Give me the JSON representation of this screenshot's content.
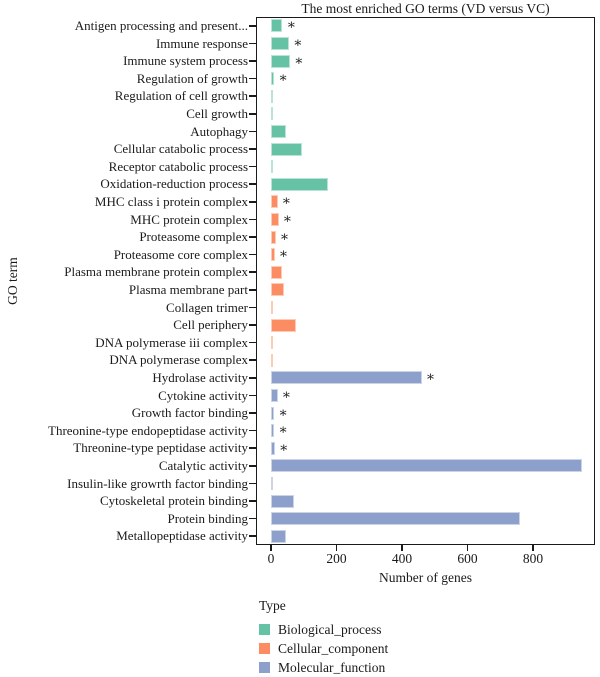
{
  "title": "The most enriched GO terms (VD versus VC)",
  "x_axis": {
    "label": "Number of genes",
    "tick_labels": [
      "0",
      "200",
      "400",
      "600",
      "800"
    ],
    "tick_values": [
      0,
      200,
      400,
      600,
      800
    ]
  },
  "y_axis": {
    "label": "GO term"
  },
  "legend": {
    "title": "Type",
    "position": "bottom-left",
    "items": [
      {
        "label": "Biological_process",
        "color": "#66C2A5"
      },
      {
        "label": "Cellular_component",
        "color": "#FC8D62"
      },
      {
        "label": "Molecular_function",
        "color": "#8DA0CB"
      }
    ]
  },
  "colors": {
    "Biological_process": "#66C2A5",
    "Cellular_component": "#FC8D62",
    "Molecular_function": "#8DA0CB",
    "axis": "#1a1a1a"
  },
  "significance_marker": "∗",
  "chart_data": {
    "type": "bar",
    "orientation": "horizontal",
    "title": "The most enriched GO terms (VD versus VC)",
    "xlabel": "Number of genes",
    "ylabel": "GO term",
    "xlim": [
      0,
      989
    ],
    "grid": false,
    "legend_position": "bottom-left",
    "series_field": "Type",
    "bars": [
      {
        "term": "Antigen processing and present...",
        "value": 35,
        "type": "Biological_process",
        "significant": true
      },
      {
        "term": "Immune response",
        "value": 55,
        "type": "Biological_process",
        "significant": true
      },
      {
        "term": "Immune system process",
        "value": 58,
        "type": "Biological_process",
        "significant": true
      },
      {
        "term": "Regulation of growth",
        "value": 10,
        "type": "Biological_process",
        "significant": true
      },
      {
        "term": "Regulation of cell growth",
        "value": 7,
        "type": "Biological_process",
        "significant": false
      },
      {
        "term": "Cell growth",
        "value": 7,
        "type": "Biological_process",
        "significant": false
      },
      {
        "term": "Autophagy",
        "value": 45,
        "type": "Biological_process",
        "significant": false
      },
      {
        "term": "Cellular catabolic process",
        "value": 95,
        "type": "Biological_process",
        "significant": false
      },
      {
        "term": "Receptor catabolic process",
        "value": 5,
        "type": "Biological_process",
        "significant": false
      },
      {
        "term": "Oxidation-reduction process",
        "value": 175,
        "type": "Biological_process",
        "significant": false
      },
      {
        "term": "MHC class i protein complex",
        "value": 20,
        "type": "Cellular_component",
        "significant": true
      },
      {
        "term": "MHC protein complex",
        "value": 23,
        "type": "Cellular_component",
        "significant": true
      },
      {
        "term": "Proteasome complex",
        "value": 14,
        "type": "Cellular_component",
        "significant": true
      },
      {
        "term": "Proteasome core complex",
        "value": 11,
        "type": "Cellular_component",
        "significant": true
      },
      {
        "term": "Plasma membrane protein complex",
        "value": 34,
        "type": "Cellular_component",
        "significant": false
      },
      {
        "term": "Plasma membrane part",
        "value": 40,
        "type": "Cellular_component",
        "significant": false
      },
      {
        "term": "Collagen trimer",
        "value": 7,
        "type": "Cellular_component",
        "significant": false
      },
      {
        "term": "Cell periphery",
        "value": 75,
        "type": "Cellular_component",
        "significant": false
      },
      {
        "term": "DNA polymerase iii complex",
        "value": 7,
        "type": "Cellular_component",
        "significant": false
      },
      {
        "term": "DNA polymerase complex",
        "value": 7,
        "type": "Cellular_component",
        "significant": false
      },
      {
        "term": "Hydrolase activity",
        "value": 460,
        "type": "Molecular_function",
        "significant": true
      },
      {
        "term": "Cytokine activity",
        "value": 20,
        "type": "Molecular_function",
        "significant": true
      },
      {
        "term": "Growth factor binding",
        "value": 10,
        "type": "Molecular_function",
        "significant": true
      },
      {
        "term": "Threonine-type endopeptidase activity",
        "value": 10,
        "type": "Molecular_function",
        "significant": true
      },
      {
        "term": "Threonine-type peptidase activity",
        "value": 12,
        "type": "Molecular_function",
        "significant": true
      },
      {
        "term": "Catalytic activity",
        "value": 950,
        "type": "Molecular_function",
        "significant": false
      },
      {
        "term": "Insulin-like growrth factor binding",
        "value": 7,
        "type": "Molecular_function",
        "significant": false
      },
      {
        "term": "Cytoskeletal protein binding",
        "value": 70,
        "type": "Molecular_function",
        "significant": false
      },
      {
        "term": "Protein binding",
        "value": 760,
        "type": "Molecular_function",
        "significant": false
      },
      {
        "term": "Metallopeptidase activity",
        "value": 45,
        "type": "Molecular_function",
        "significant": false
      }
    ]
  }
}
